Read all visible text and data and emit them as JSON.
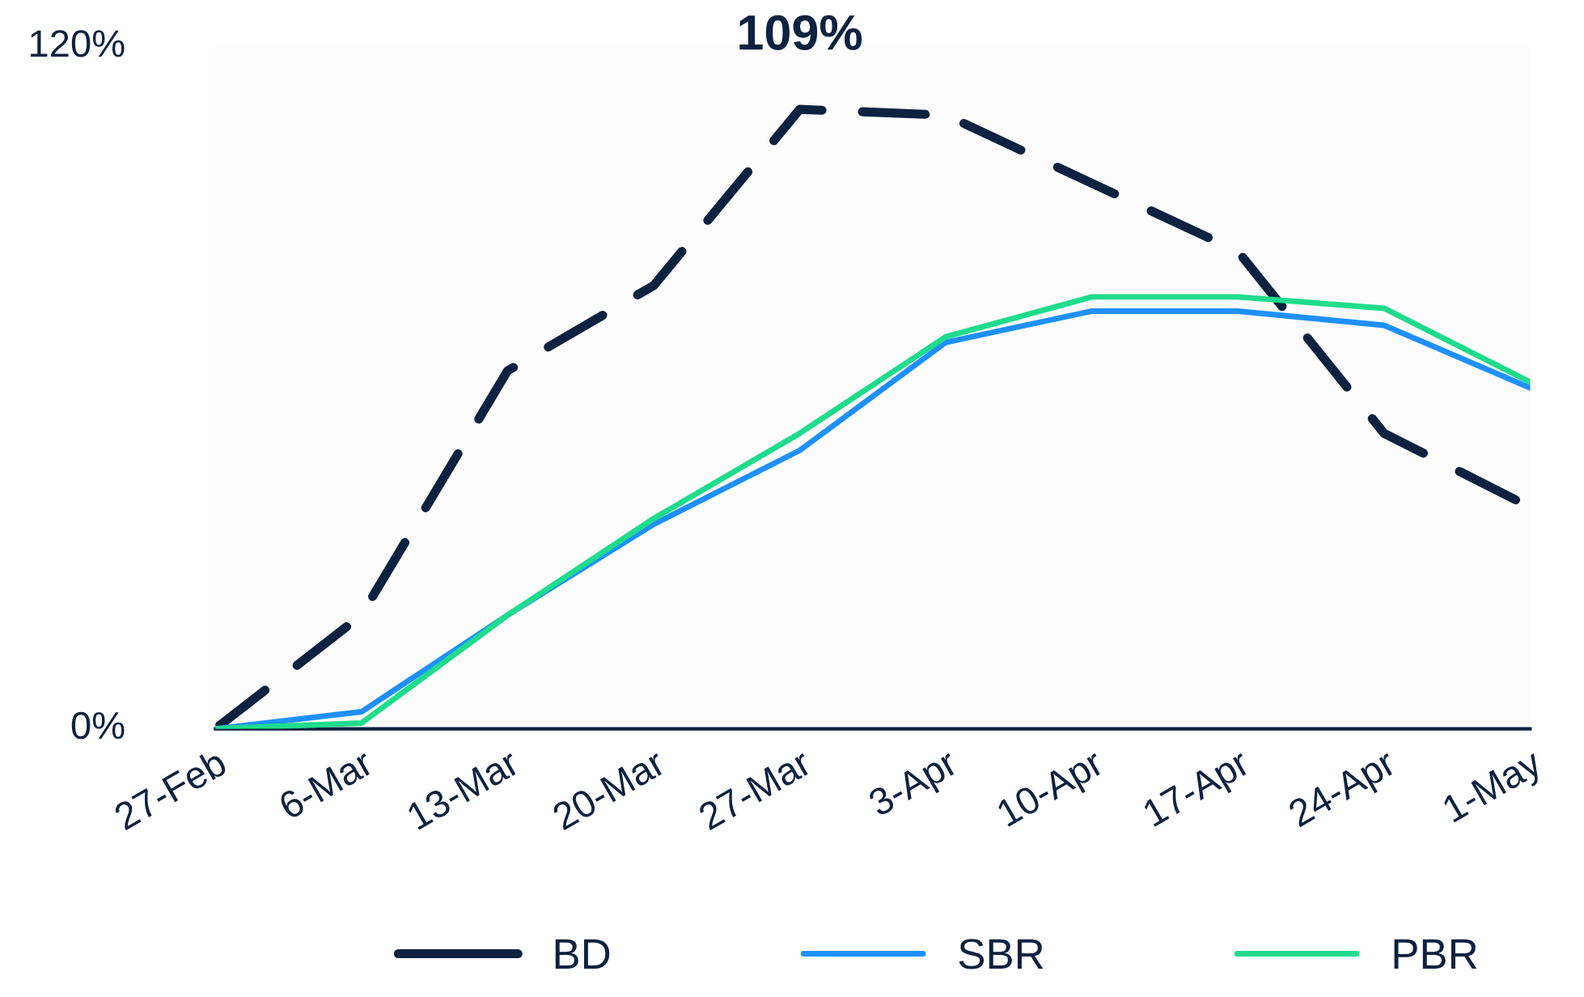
{
  "chart_data": {
    "type": "line",
    "categories": [
      "27-Feb",
      "6-Mar",
      "13-Mar",
      "20-Mar",
      "27-Mar",
      "3-Apr",
      "10-Apr",
      "17-Apr",
      "24-Apr",
      "1-May"
    ],
    "series": [
      {
        "name": "BD",
        "color": "#0d2240",
        "line_style": "dashed",
        "values": [
          0,
          20,
          63,
          78,
          109,
          108,
          96,
          84,
          52,
          39
        ]
      },
      {
        "name": "SBR",
        "color": "#1e90ff",
        "values": [
          0,
          3,
          20,
          36,
          49,
          68,
          73.5,
          73.5,
          71,
          60
        ]
      },
      {
        "name": "PBR",
        "color": "#1fdc8c",
        "values": [
          0,
          1,
          20,
          37,
          52,
          69,
          76,
          76,
          74,
          61
        ]
      }
    ],
    "ylim": [
      0,
      120
    ],
    "yticks": [
      {
        "value": 0,
        "label": "0%"
      },
      {
        "value": 120,
        "label": "120%"
      }
    ],
    "annotations": [
      {
        "text": "109%",
        "x": "27-Mar",
        "y": 109
      }
    ],
    "grid": false,
    "legend": "bottom",
    "marker": "none"
  }
}
